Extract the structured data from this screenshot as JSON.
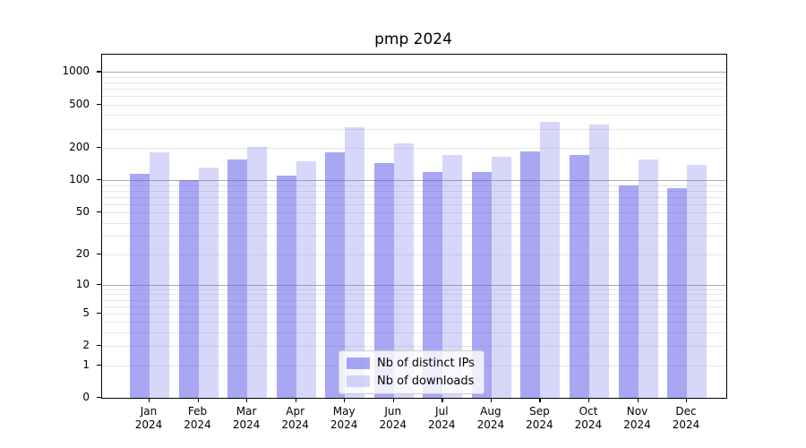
{
  "figure": {
    "title": "pmp 2024"
  },
  "chart_data": {
    "type": "bar",
    "title": "pmp 2024",
    "categories": [
      "Jan",
      "Feb",
      "Mar",
      "Apr",
      "May",
      "Jun",
      "Jul",
      "Aug",
      "Sep",
      "Oct",
      "Nov",
      "Dec"
    ],
    "year": "2024",
    "x_tick_labels": [
      "Jan\n2024",
      "Feb\n2024",
      "Mar\n2024",
      "Apr\n2024",
      "May\n2024",
      "Jun\n2024",
      "Jul\n2024",
      "Aug\n2024",
      "Sep\n2024",
      "Oct\n2024",
      "Nov\n2024",
      "Dec\n2024"
    ],
    "series": [
      {
        "name": "Nb of distinct IPs",
        "color": "rgba(95,95,235,0.55)",
        "values": [
          115,
          100,
          155,
          110,
          180,
          145,
          120,
          120,
          185,
          170,
          90,
          85
        ]
      },
      {
        "name": "Nb of downloads",
        "color": "rgba(95,95,235,0.25)",
        "values": [
          180,
          130,
          205,
          150,
          310,
          220,
          170,
          165,
          345,
          330,
          155,
          140
        ]
      }
    ],
    "xlabel": "",
    "ylabel": "",
    "yscale": "log1p",
    "yticks": [
      0,
      1,
      2,
      5,
      10,
      20,
      50,
      100,
      200,
      500,
      1000
    ],
    "ylim": [
      0,
      1450
    ],
    "grid": true,
    "grid_minor_color": "#e7e7e7",
    "grid_major_color": "#ababab",
    "legend_position": "lower center",
    "legend_labels": [
      "Nb of distinct IPs",
      "Nb of downloads"
    ]
  }
}
